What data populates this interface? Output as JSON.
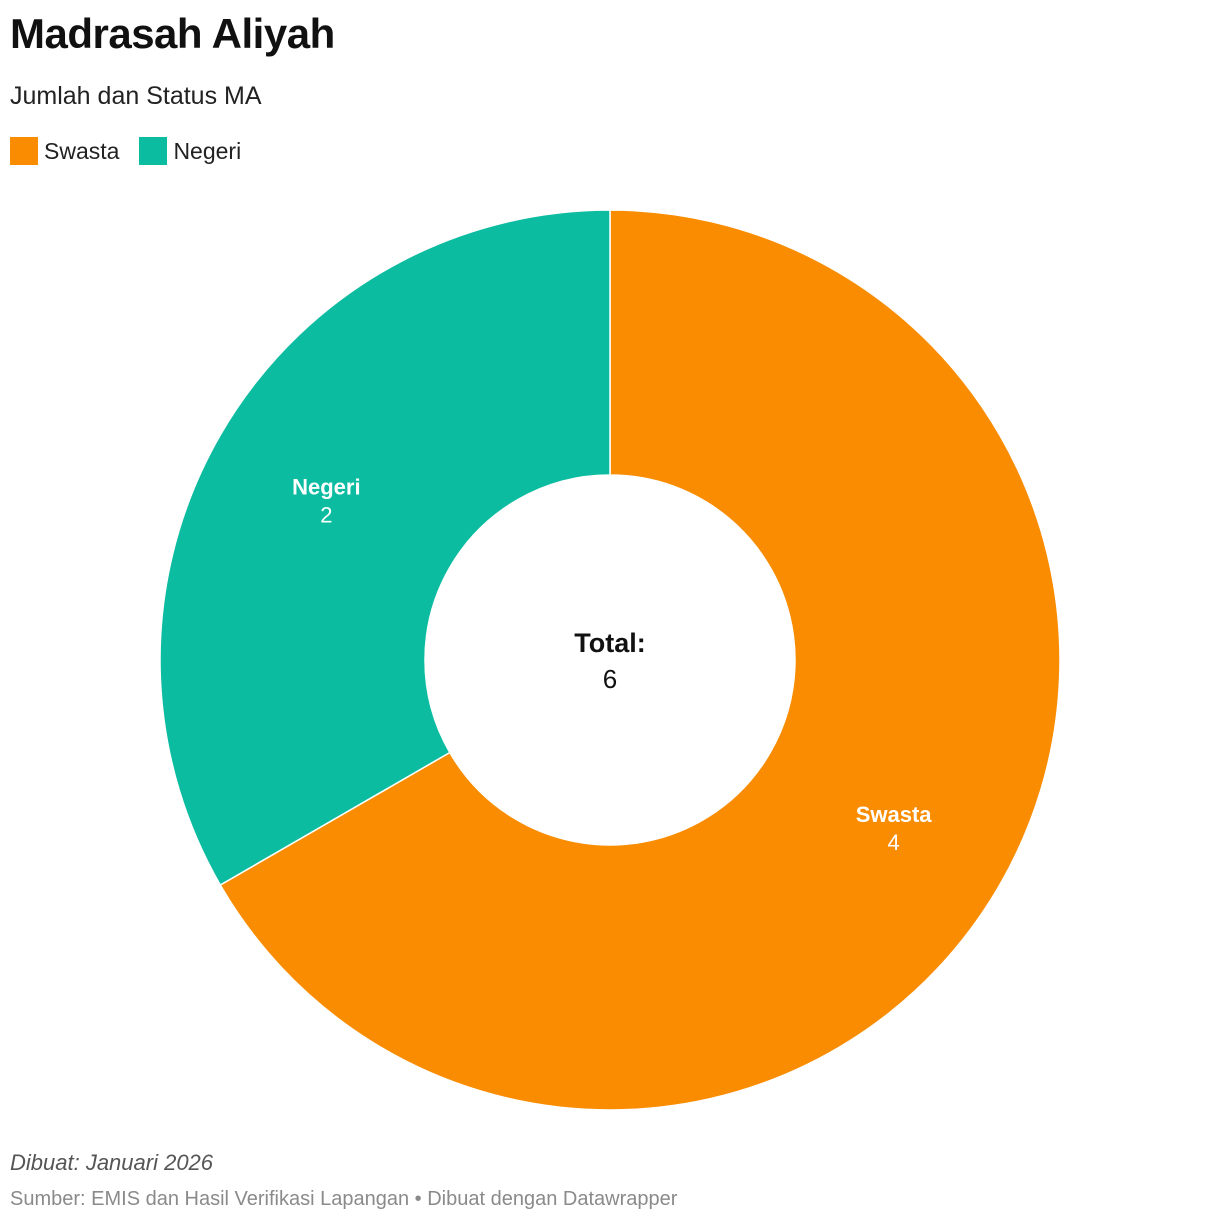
{
  "header": {
    "title": "Madrasah Aliyah",
    "subtitle": "Jumlah dan Status MA"
  },
  "legend": [
    {
      "label": "Swasta",
      "color": "#f98c00"
    },
    {
      "label": "Negeri",
      "color": "#0bbca0"
    }
  ],
  "chart_data": {
    "type": "pie",
    "variant": "donut",
    "title": "Madrasah Aliyah",
    "subtitle": "Jumlah dan Status MA",
    "categories": [
      "Swasta",
      "Negeri"
    ],
    "values": [
      4,
      2
    ],
    "colors": [
      "#f98c00",
      "#0bbca0"
    ],
    "center_label": "Total:",
    "center_value": "6",
    "legend_position": "top-left"
  },
  "footer": {
    "notes": "Dibuat: Januari 2026",
    "source": "Sumber: EMIS dan Hasil Verifikasi Lapangan • Dibuat dengan Datawrapper"
  }
}
